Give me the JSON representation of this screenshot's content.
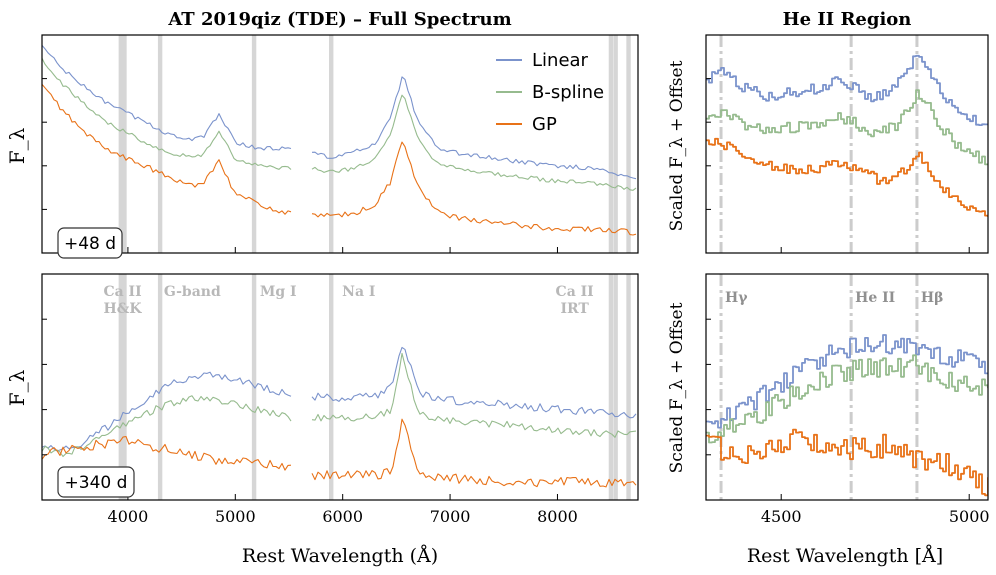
{
  "chart_data": [
    {
      "type": "line",
      "panel": "top-left",
      "title": "AT 2019qiz (TDE) – Full Spectrum",
      "ylabel": "F_λ",
      "xlabel": "",
      "xlim": [
        3200,
        8750
      ],
      "ylim": [
        0,
        10
      ],
      "xticks": [
        4000,
        5000,
        6000,
        7000,
        8000
      ],
      "epoch": "+48 d",
      "gaps": [
        [
          5530,
          5700
        ]
      ],
      "feature_bands": [
        3934,
        3968,
        4300,
        5175,
        5893,
        8498,
        8542,
        8662
      ],
      "series": [
        {
          "name": "Linear",
          "color": "#7b93cc",
          "x": [
            3200,
            3400,
            3600,
            3800,
            4000,
            4200,
            4400,
            4600,
            4700,
            4850,
            5000,
            5200,
            5400,
            5530,
            5700,
            5900,
            6100,
            6300,
            6450,
            6560,
            6700,
            6900,
            7200,
            7600,
            8000,
            8300,
            8600,
            8750
          ],
          "y": [
            9.5,
            8.4,
            7.6,
            6.9,
            6.4,
            5.9,
            5.4,
            5.2,
            5.3,
            6.4,
            5.1,
            4.8,
            4.8,
            4.8,
            4.6,
            4.4,
            4.6,
            5.0,
            6.2,
            8.2,
            6.0,
            4.7,
            4.5,
            4.2,
            4.0,
            3.9,
            3.6,
            3.4
          ]
        },
        {
          "name": "B-spline",
          "color": "#96bb8e",
          "x": [
            3200,
            3400,
            3600,
            3800,
            4000,
            4200,
            4400,
            4600,
            4700,
            4850,
            5000,
            5200,
            5400,
            5530,
            5700,
            5900,
            6100,
            6300,
            6450,
            6560,
            6700,
            6900,
            7200,
            7600,
            8000,
            8300,
            8600,
            8750
          ],
          "y": [
            8.9,
            7.7,
            6.8,
            6.0,
            5.5,
            5.0,
            4.6,
            4.4,
            4.5,
            5.6,
            4.3,
            4.0,
            3.9,
            3.9,
            3.9,
            3.7,
            3.9,
            4.3,
            5.4,
            7.4,
            5.2,
            4.0,
            3.8,
            3.5,
            3.3,
            3.2,
            3.0,
            2.9
          ]
        },
        {
          "name": "GP",
          "color": "#e87218",
          "x": [
            3200,
            3400,
            3600,
            3800,
            4000,
            4200,
            4400,
            4600,
            4700,
            4850,
            5000,
            5200,
            5400,
            5530,
            5700,
            5900,
            6100,
            6300,
            6450,
            6560,
            6700,
            6900,
            7200,
            7600,
            8000,
            8300,
            8600,
            8750
          ],
          "y": [
            7.7,
            6.5,
            5.5,
            4.8,
            4.3,
            3.9,
            3.4,
            3.1,
            3.2,
            4.3,
            2.7,
            2.3,
            1.9,
            1.8,
            1.7,
            1.7,
            1.8,
            2.2,
            3.3,
            5.3,
            3.0,
            1.8,
            1.5,
            1.3,
            1.1,
            1.1,
            1.0,
            0.9
          ]
        }
      ]
    },
    {
      "type": "line",
      "panel": "bottom-left",
      "title": "",
      "ylabel": "F_λ",
      "xlabel": "Rest Wavelength (Å)",
      "xlim": [
        3200,
        8750
      ],
      "ylim": [
        0,
        10
      ],
      "xticks": [
        4000,
        5000,
        6000,
        7000,
        8000
      ],
      "epoch": "+340 d",
      "gaps": [
        [
          5530,
          5700
        ]
      ],
      "feature_bands": [
        3934,
        3968,
        4300,
        5175,
        5893,
        8498,
        8542,
        8662
      ],
      "feature_labels": [
        {
          "line1": "Ca II",
          "line2": "H&K",
          "x": 3950
        },
        {
          "line1": "G-band",
          "line2": "",
          "x": 4600
        },
        {
          "line1": "Mg I",
          "line2": "",
          "x": 5400
        },
        {
          "line1": "Na I",
          "line2": "",
          "x": 6150
        },
        {
          "line1": "Ca II",
          "line2": "IRT",
          "x": 8160
        }
      ],
      "series": [
        {
          "name": "Linear",
          "color": "#7b93cc",
          "x": [
            3200,
            3400,
            3600,
            3800,
            4000,
            4200,
            4400,
            4600,
            4800,
            5000,
            5200,
            5400,
            5530,
            5700,
            5900,
            6100,
            6300,
            6450,
            6560,
            6700,
            6900,
            7200,
            7600,
            8000,
            8300,
            8600,
            8750
          ],
          "y": [
            2.5,
            2.2,
            2.6,
            3.2,
            3.9,
            4.6,
            5.2,
            5.4,
            5.5,
            5.4,
            5.0,
            4.8,
            4.6,
            4.6,
            4.5,
            4.5,
            4.6,
            5.0,
            7.0,
            4.8,
            4.5,
            4.3,
            4.2,
            4.0,
            3.9,
            3.8,
            3.8
          ]
        },
        {
          "name": "B-spline",
          "color": "#96bb8e",
          "x": [
            3200,
            3400,
            3600,
            3800,
            4000,
            4200,
            4400,
            4600,
            4800,
            5000,
            5200,
            5400,
            5530,
            5700,
            5900,
            6100,
            6300,
            6450,
            6560,
            6700,
            6900,
            7200,
            7600,
            8000,
            8300,
            8600,
            8750
          ],
          "y": [
            2.3,
            2.0,
            2.4,
            2.9,
            3.4,
            3.9,
            4.3,
            4.5,
            4.4,
            4.3,
            4.0,
            3.8,
            3.6,
            3.7,
            3.6,
            3.6,
            3.7,
            4.0,
            6.5,
            3.8,
            3.6,
            3.4,
            3.3,
            3.1,
            3.0,
            2.9,
            2.9
          ]
        },
        {
          "name": "GP",
          "color": "#e87218",
          "x": [
            3200,
            3400,
            3600,
            3800,
            4000,
            4200,
            4400,
            4600,
            4800,
            5000,
            5200,
            5400,
            5530,
            5700,
            5900,
            6100,
            6300,
            6450,
            6560,
            6700,
            6900,
            7200,
            7600,
            8000,
            8300,
            8600,
            8750
          ],
          "y": [
            2.0,
            2.2,
            2.4,
            2.5,
            2.6,
            2.4,
            2.2,
            2.0,
            1.8,
            1.7,
            1.6,
            1.5,
            1.4,
            1.1,
            1.1,
            1.1,
            1.1,
            1.3,
            3.6,
            1.1,
            1.0,
            0.9,
            0.8,
            0.8,
            0.8,
            0.7,
            0.7
          ]
        }
      ]
    },
    {
      "type": "line",
      "panel": "top-right",
      "title": "He II Region",
      "ylabel": "Scaled F_λ + Offset",
      "xlabel": "",
      "xlim": [
        4300,
        5050
      ],
      "ylim": [
        0,
        10
      ],
      "xticks": [
        4500,
        5000
      ],
      "marker_lines": [
        4340,
        4686,
        4861
      ],
      "series": [
        {
          "name": "Linear",
          "color": "#7b93cc",
          "x": [
            4300,
            4340,
            4400,
            4450,
            4500,
            4550,
            4600,
            4650,
            4686,
            4720,
            4760,
            4800,
            4840,
            4861,
            4890,
            4930,
            4970,
            5010,
            5050
          ],
          "y": [
            8.0,
            8.3,
            7.6,
            7.2,
            7.3,
            7.4,
            7.6,
            7.9,
            7.7,
            7.2,
            7.2,
            7.6,
            8.6,
            9.2,
            8.5,
            7.3,
            6.6,
            6.1,
            5.8
          ]
        },
        {
          "name": "B-spline",
          "color": "#96bb8e",
          "x": [
            4300,
            4340,
            4400,
            4450,
            4500,
            4550,
            4600,
            4650,
            4686,
            4720,
            4760,
            4800,
            4840,
            4861,
            4890,
            4930,
            4970,
            5010,
            5050
          ],
          "y": [
            6.2,
            6.5,
            5.9,
            5.6,
            5.7,
            5.8,
            6.0,
            6.2,
            6.1,
            5.6,
            5.6,
            5.8,
            6.7,
            7.4,
            6.7,
            5.6,
            4.9,
            4.5,
            4.2
          ]
        },
        {
          "name": "GP",
          "color": "#e87218",
          "x": [
            4300,
            4340,
            4400,
            4450,
            4500,
            4550,
            4600,
            4650,
            4686,
            4720,
            4760,
            4800,
            4840,
            4861,
            4890,
            4930,
            4970,
            5010,
            5050
          ],
          "y": [
            5.2,
            5.0,
            4.5,
            4.1,
            3.9,
            3.8,
            3.9,
            4.1,
            3.9,
            3.7,
            3.3,
            3.4,
            4.0,
            4.6,
            3.8,
            2.9,
            2.4,
            1.9,
            1.6
          ]
        }
      ]
    },
    {
      "type": "line",
      "panel": "bottom-right",
      "title": "",
      "ylabel": "Scaled F_λ + Offset",
      "xlabel": "Rest Wavelength [Å]",
      "xlim": [
        4300,
        5050
      ],
      "ylim": [
        0,
        10
      ],
      "xticks": [
        4500,
        5000
      ],
      "marker_lines": [
        4340,
        4686,
        4861
      ],
      "line_labels": [
        {
          "text": "Hγ",
          "x": 4340
        },
        {
          "text": "He II",
          "x": 4686
        },
        {
          "text": "Hβ",
          "x": 4861
        }
      ],
      "series": [
        {
          "name": "Linear",
          "color": "#7b93cc",
          "x": [
            4300,
            4340,
            4400,
            4450,
            4500,
            4550,
            4600,
            4650,
            4700,
            4750,
            4800,
            4850,
            4900,
            4950,
            5000,
            5050
          ],
          "y": [
            3.2,
            3.5,
            4.0,
            4.6,
            5.2,
            5.8,
            6.2,
            6.6,
            6.8,
            6.9,
            6.8,
            6.9,
            6.6,
            6.3,
            6.1,
            6.0
          ]
        },
        {
          "name": "B-spline",
          "color": "#96bb8e",
          "x": [
            4300,
            4340,
            4400,
            4450,
            4500,
            4550,
            4600,
            4650,
            4700,
            4750,
            4800,
            4850,
            4900,
            4950,
            5000,
            5050
          ],
          "y": [
            2.7,
            3.0,
            3.4,
            3.9,
            4.4,
            4.9,
            5.3,
            5.6,
            5.8,
            5.9,
            5.8,
            6.0,
            5.6,
            5.3,
            5.1,
            5.0
          ]
        },
        {
          "name": "GP",
          "color": "#e87218",
          "x": [
            4300,
            4340,
            4400,
            4450,
            4500,
            4550,
            4600,
            4650,
            4700,
            4750,
            4800,
            4850,
            4900,
            4950,
            5000,
            5050
          ],
          "y": [
            2.5,
            2.3,
            2.1,
            2.3,
            2.6,
            2.8,
            2.6,
            2.4,
            2.2,
            2.3,
            2.6,
            1.6,
            1.8,
            1.4,
            1.0,
            0.6
          ]
        }
      ]
    }
  ]
}
